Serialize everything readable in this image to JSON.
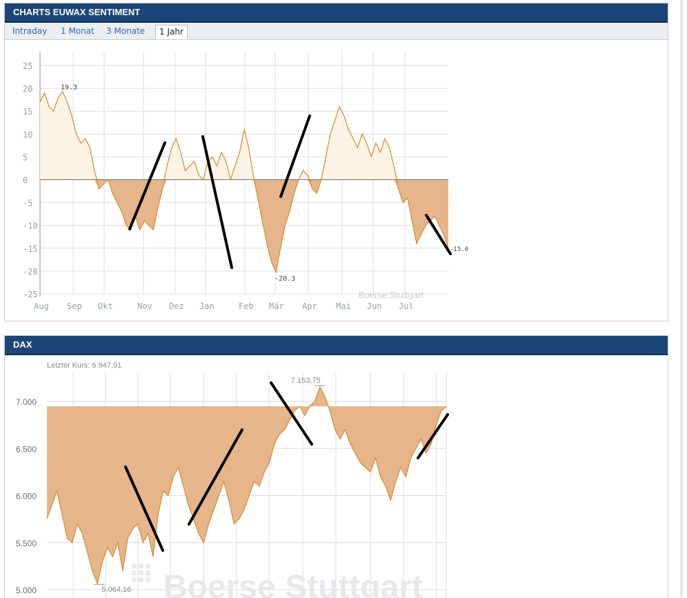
{
  "panel1": {
    "title": "CHARTS EUWAX SENTIMENT",
    "tabs": [
      {
        "label": "Intraday",
        "active": false
      },
      {
        "label": "1 Monat",
        "active": false
      },
      {
        "label": "3 Monate",
        "active": false
      },
      {
        "label": "1 Jahr",
        "active": true
      }
    ],
    "watermark": "Boerse Stuttgart"
  },
  "panel2": {
    "title": "DAX",
    "last_price": "Letzter Kurs: 6.947,91",
    "watermark": "Boerse Stuttgart"
  },
  "colors": {
    "header": "#1c4577",
    "fill": "#e6b58a",
    "fill_light": "#fdf3e4",
    "line": "#d9882e",
    "grid": "#dcdcdc",
    "axis_text": "#9aa0a6"
  },
  "chart_data": [
    {
      "type": "area",
      "title": "",
      "ylim": [
        -25,
        25
      ],
      "y_ticks": [
        25,
        20,
        15,
        10,
        5,
        0,
        -5,
        -10,
        -15,
        -20,
        -25
      ],
      "x_tick_labels": [
        "Aug",
        "Sep",
        "Okt",
        "Nov",
        "Dez",
        "Jan",
        "Feb",
        "Mär",
        "Apr",
        "Mai",
        "Jun",
        "Jul"
      ],
      "annotations": [
        "19.3",
        "-20.3",
        "-15.0"
      ],
      "series": [
        {
          "values": [
            17,
            19,
            16,
            15,
            18,
            19.3,
            17,
            14,
            10,
            8,
            9,
            7,
            2,
            -2,
            -1,
            0,
            -3,
            -5,
            -7,
            -10,
            -11,
            -8,
            -11,
            -9,
            -10,
            -11,
            -6,
            -2,
            3,
            7,
            9,
            6,
            2,
            3,
            4,
            1,
            0,
            4,
            5,
            3,
            6,
            4,
            0,
            3,
            6,
            11,
            7,
            1,
            -4,
            -9,
            -14,
            -18,
            -20.3,
            -15,
            -10,
            -7,
            -3,
            0,
            2,
            1,
            -2,
            -3,
            0,
            5,
            10,
            13,
            16,
            14,
            11,
            9,
            7,
            10,
            8,
            5,
            8,
            6,
            9,
            7,
            3,
            -2,
            -5,
            -4,
            -9,
            -14,
            -12,
            -10,
            -9,
            -8,
            -10,
            -12,
            -15
          ]
        }
      ]
    },
    {
      "type": "area",
      "title": "",
      "ylim": [
        5000,
        7200
      ],
      "y_ticks": [
        "7.000",
        "6.500",
        "6.000",
        "5.500",
        "5.000"
      ],
      "annotations": [
        "7.153,75",
        "5.064,16"
      ],
      "series": [
        {
          "values": [
            5750,
            5900,
            6050,
            5800,
            5550,
            5500,
            5700,
            5600,
            5400,
            5200,
            5064.16,
            5300,
            5450,
            5350,
            5500,
            5200,
            5550,
            5650,
            5700,
            5500,
            5600,
            5350,
            5800,
            6050,
            6000,
            6200,
            6300,
            6100,
            5900,
            5750,
            5600,
            5500,
            5700,
            5850,
            6000,
            6150,
            5950,
            5700,
            5750,
            5850,
            6000,
            6150,
            6100,
            6250,
            6350,
            6550,
            6650,
            6700,
            6800,
            6900,
            6950,
            6850,
            6950,
            7000,
            7153.75,
            7050,
            6900,
            6700,
            6600,
            6700,
            6550,
            6450,
            6350,
            6300,
            6250,
            6400,
            6200,
            6100,
            5950,
            6150,
            6300,
            6200,
            6400,
            6500,
            6600,
            6450,
            6550,
            6750,
            6900,
            6947.91
          ]
        }
      ]
    }
  ]
}
